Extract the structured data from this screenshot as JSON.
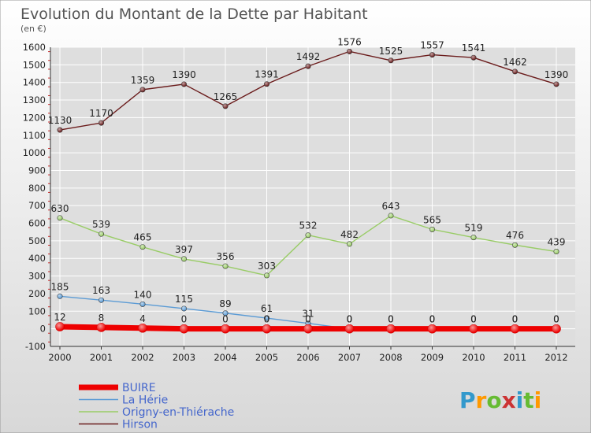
{
  "chart_data": {
    "type": "line",
    "title": "Evolution du Montant de la Dette par Habitant",
    "subtitle": "(en €)",
    "x": [
      "2000",
      "2001",
      "2002",
      "2003",
      "2004",
      "2005",
      "2006",
      "2007",
      "2008",
      "2009",
      "2010",
      "2011",
      "2012"
    ],
    "ylim": [
      -100,
      1600
    ],
    "yticks": [
      -100,
      0,
      100,
      200,
      300,
      400,
      500,
      600,
      700,
      800,
      900,
      1000,
      1100,
      1200,
      1300,
      1400,
      1500,
      1600
    ],
    "grid": true,
    "legend_position": "bottom-left",
    "series": [
      {
        "name": "Hirson",
        "color": "#6b1c1c",
        "values": [
          1130,
          1170,
          1359,
          1390,
          1265,
          1391,
          1492,
          1576,
          1525,
          1557,
          1541,
          1462,
          1390
        ]
      },
      {
        "name": "Origny-en-Thiérache",
        "color": "#99cc66",
        "values": [
          630,
          539,
          465,
          397,
          356,
          303,
          532,
          482,
          643,
          565,
          519,
          476,
          439
        ]
      },
      {
        "name": "La Hérie",
        "color": "#5b9bd5",
        "values": [
          185,
          163,
          140,
          115,
          89,
          61,
          31,
          0,
          0,
          0,
          0,
          0,
          0
        ]
      },
      {
        "name": "BUIRE",
        "color": "#ee0000",
        "values": [
          12,
          8,
          4,
          0,
          0,
          0,
          0,
          0,
          0,
          0,
          0,
          0,
          0
        ]
      }
    ],
    "legend_order": [
      "BUIRE",
      "La Hérie",
      "Origny-en-Thiérache",
      "Hirson"
    ]
  },
  "logo": {
    "text": "Proxiti"
  },
  "colors": {
    "background_top": "#ffffff",
    "background_bottom": "#dcdcdc",
    "title": "#555555",
    "grid": "#ffffff",
    "axis": "#333333",
    "legend_text": "#4466cc",
    "label_text": "#222222"
  }
}
